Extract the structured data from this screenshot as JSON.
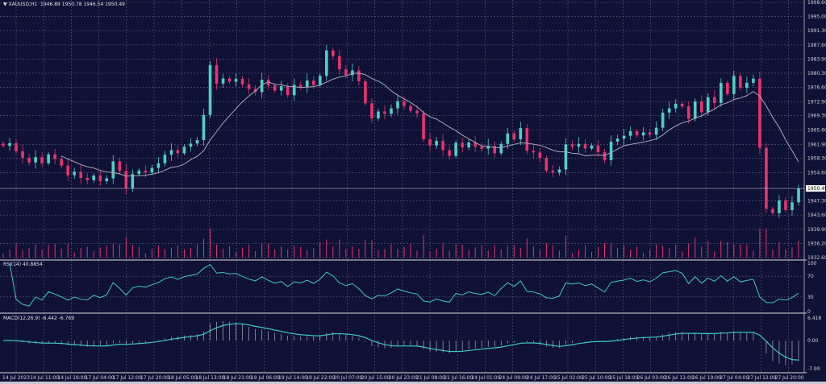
{
  "chart_data": {
    "type": "candlestick",
    "symbol_title": "XAUUSD,H1",
    "ohlc_readout": "1946.89 1950.78 1946.54 1950.49",
    "price_ticks": [
      "1998.60",
      "1995.00",
      "1991.30",
      "1987.60",
      "1983.90",
      "1980.30",
      "1976.60",
      "1972.90",
      "1969.30",
      "1965.60",
      "1961.90",
      "1958.30",
      "1954.60",
      "1947.30",
      "1943.60",
      "1939.90",
      "1936.20",
      "1932.60"
    ],
    "ylim": [
      1932.6,
      1998.6
    ],
    "current_price": "1950.49",
    "closes": [
      1961.5,
      1962.2,
      1960.1,
      1958.4,
      1957.2,
      1958.6,
      1957.0,
      1959.3,
      1958.1,
      1956.4,
      1953.9,
      1954.8,
      1953.2,
      1952.6,
      1953.8,
      1952.4,
      1953.1,
      1957.5,
      1955.0,
      1950.6,
      1954.2,
      1955.1,
      1954.6,
      1955.8,
      1957.0,
      1959.2,
      1960.4,
      1959.6,
      1961.3,
      1962.1,
      1963.0,
      1969.5,
      1982.4,
      1977.6,
      1978.9,
      1978.1,
      1978.8,
      1977.4,
      1976.2,
      1975.4,
      1978.6,
      1977.1,
      1975.8,
      1976.9,
      1974.6,
      1977.3,
      1976.8,
      1978.4,
      1977.2,
      1979.6,
      1986.2,
      1984.7,
      1981.3,
      1979.8,
      1981.0,
      1978.2,
      1972.5,
      1968.6,
      1970.4,
      1969.8,
      1971.2,
      1973.1,
      1971.8,
      1970.6,
      1969.9,
      1963.2,
      1961.6,
      1962.8,
      1960.4,
      1958.9,
      1962.3,
      1961.1,
      1962.4,
      1961.3,
      1960.8,
      1961.5,
      1959.6,
      1962.0,
      1964.7,
      1963.2,
      1966.1,
      1960.2,
      1959.8,
      1958.4,
      1955.1,
      1954.6,
      1955.4,
      1961.9,
      1961.3,
      1962.0,
      1960.8,
      1961.6,
      1959.9,
      1957.8,
      1962.6,
      1963.4,
      1964.1,
      1965.3,
      1964.2,
      1965.0,
      1964.4,
      1966.2,
      1970.1,
      1971.2,
      1972.4,
      1971.7,
      1968.5,
      1973.0,
      1970.2,
      1974.1,
      1972.6,
      1977.8,
      1974.9,
      1979.6,
      1976.5,
      1977.8,
      1978.9,
      1961.0,
      1945.2,
      1944.1,
      1947.4,
      1944.9,
      1946.9,
      1950.49
    ],
    "time_labels": [
      "14 Jul 2023",
      "14 Jul 11:00",
      "14 Jul 19:00",
      "17 Jul 04:00",
      "17 Jul 12:00",
      "17 Jul 20:00",
      "18 Jul 05:00",
      "18 Jul 13:00",
      "18 Jul 21:00",
      "19 Jul 06:00",
      "19 Jul 14:00",
      "19 Jul 22:00",
      "20 Jul 07:00",
      "20 Jul 15:00",
      "20 Jul 23:00",
      "21 Jul 08:00",
      "21 Jul 16:00",
      "24 Jul 01:00",
      "24 Jul 09:00",
      "24 Jul 17:00",
      "25 Jul 02:00",
      "25 Jul 10:00",
      "25 Jul 18:00",
      "26 Jul 03:00",
      "26 Jul 11:00",
      "26 Jul 19:00",
      "27 Jul 04:00",
      "27 Jul 12:00",
      "27 Jul 20:00"
    ],
    "rsi": {
      "title": "RSI(14) 40.8854",
      "ticks": [
        "100",
        "70",
        "30",
        "0"
      ]
    },
    "macd": {
      "title": "MACD(12,26,9) -6.442 -6.769",
      "ticks": [
        "6.418",
        "0.00",
        "-7.99"
      ],
      "ylim": [
        -7.99,
        6.418
      ]
    },
    "grid": true,
    "colors": {
      "background": "#0f1136",
      "bull": "#4fd1c5",
      "bear": "#e8336d",
      "ma": "#a8a8b8",
      "indicator": "#3ec8c8",
      "grid": "#5a5c80"
    }
  }
}
